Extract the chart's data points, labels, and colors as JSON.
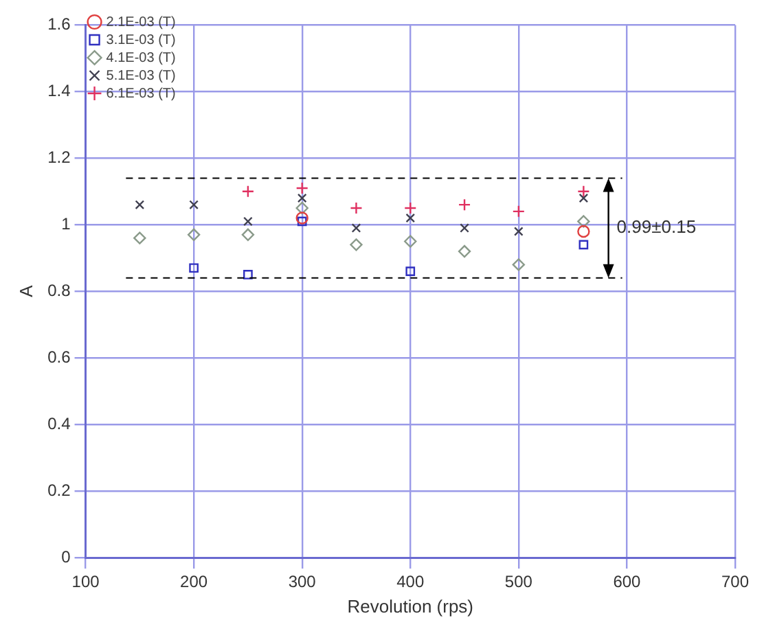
{
  "chart_data": {
    "type": "scatter",
    "xlabel": "Revolution (rps)",
    "ylabel": "A",
    "xlim": [
      100,
      700
    ],
    "xticks": [
      100,
      200,
      300,
      400,
      500,
      600,
      700
    ],
    "ylim": [
      0,
      1.6
    ],
    "yticks": [
      0,
      {
        "value": 0.2,
        "label": "0.2"
      },
      {
        "value": 0.4,
        "label": "0.4"
      },
      {
        "value": 0.6,
        "label": "0.6"
      },
      {
        "value": 0.8,
        "label": "0.8"
      },
      1,
      1.2,
      1.4,
      1.6
    ],
    "grid": true,
    "legend": "top left",
    "series": [
      {
        "name": "2.1E-03 (T)",
        "color": "#e04040",
        "marker": "circle",
        "x": [
          300,
          560
        ],
        "values": [
          1.02,
          0.98
        ]
      },
      {
        "name": "3.1E-03 (T)",
        "color": "#3030c0",
        "marker": "square",
        "x": [
          200,
          250,
          300,
          400,
          560
        ],
        "values": [
          0.87,
          0.85,
          1.01,
          0.86,
          0.94
        ]
      },
      {
        "name": "4.1E-03 (T)",
        "color": "#8a9a8a",
        "marker": "diamond",
        "x": [
          150,
          200,
          250,
          300,
          350,
          400,
          450,
          500,
          560
        ],
        "values": [
          0.96,
          0.97,
          0.97,
          1.05,
          0.94,
          0.95,
          0.92,
          0.88,
          1.01
        ]
      },
      {
        "name": "5.1E-03 (T)",
        "color": "#404050",
        "marker": "cross",
        "x": [
          150,
          200,
          250,
          300,
          350,
          400,
          450,
          500,
          560
        ],
        "values": [
          1.06,
          1.06,
          1.01,
          1.08,
          0.99,
          1.02,
          0.99,
          0.98,
          1.08
        ]
      },
      {
        "name": "6.1E-03 (T)",
        "color": "#e03060",
        "marker": "cross",
        "x": [
          250,
          300,
          350,
          400,
          450,
          500,
          560
        ],
        "values": [
          1.1,
          1.11,
          1.05,
          1.05,
          1.06,
          1.04,
          1.1
        ]
      }
    ],
    "ref_lines": [
      {
        "axis": "y",
        "value": 1.14,
        "line_style": "dashed",
        "color": "#000000"
      },
      {
        "axis": "y",
        "value": 0.84,
        "line_style": "dashed",
        "color": "#000000"
      }
    ],
    "annotations": [
      "0.99±0.15"
    ]
  }
}
